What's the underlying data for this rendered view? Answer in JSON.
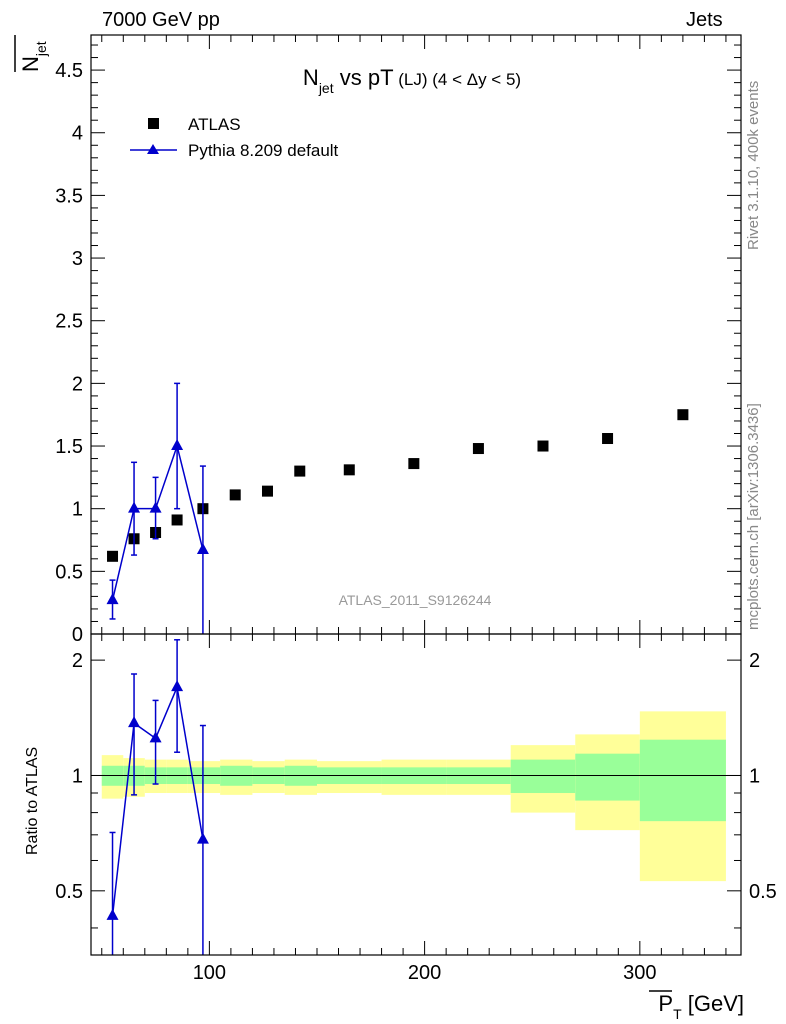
{
  "header": {
    "left": "7000 GeV pp",
    "right": "Jets"
  },
  "side_labels": {
    "rivet": "Rivet 3.1.10,  400k events",
    "source": "mcplots.cern.ch [arXiv:1306.3436]"
  },
  "chart_data": [
    {
      "type": "scatter",
      "title": "N_jet vs pT (LJ) (4 < Δy < 5)",
      "title_parts": {
        "n": "N",
        "sub": "jet",
        "mid": " vs pT",
        "small": " (LJ) (4 < Δy < 5)"
      },
      "ylabel_parts": {
        "n": "N",
        "sub": "jet"
      },
      "analysis_label": "ATLAS_2011_S9126244",
      "xlim": [
        45,
        347
      ],
      "ylim": [
        0,
        4.78
      ],
      "yticks": [
        0,
        0.5,
        1,
        1.5,
        2,
        2.5,
        3,
        3.5,
        4,
        4.5
      ],
      "ytick_labels": [
        "0",
        "0.5",
        "1",
        "1.5",
        "2",
        "2.5",
        "3",
        "3.5",
        "4",
        "4.5"
      ],
      "legend": {
        "placement": "top-left",
        "entries": [
          "ATLAS",
          "Pythia 8.209 default"
        ]
      },
      "series": [
        {
          "name": "ATLAS",
          "color": "#000000",
          "marker": "square",
          "x": [
            55,
            65,
            75,
            85,
            97,
            112,
            127,
            142,
            165,
            195,
            225,
            255,
            285,
            320
          ],
          "y": [
            0.62,
            0.76,
            0.81,
            0.91,
            1.0,
            1.11,
            1.14,
            1.3,
            1.31,
            1.36,
            1.48,
            1.5,
            1.56,
            1.75
          ]
        },
        {
          "name": "Pythia 8.209 default",
          "color": "#0000cc",
          "marker": "triangle",
          "x": [
            55,
            65,
            75,
            85,
            97
          ],
          "y": [
            0.27,
            1.0,
            1.0,
            1.5,
            0.67
          ],
          "yerr_low": [
            0.15,
            0.37,
            0.24,
            0.5,
            0.8
          ],
          "yerr_high": [
            0.16,
            0.37,
            0.25,
            0.5,
            0.67
          ]
        }
      ]
    },
    {
      "type": "scatter",
      "ylabel": "Ratio to ATLAS",
      "xlabel_parts": {
        "p": "P",
        "sub": "T",
        "unit": " [GeV]"
      },
      "xlim": [
        45,
        347
      ],
      "ylim": [
        0.34,
        2.34
      ],
      "xticks": [
        100,
        200,
        300
      ],
      "xtick_labels": [
        "100",
        "200",
        "300"
      ],
      "yticks": [
        0.5,
        1,
        2
      ],
      "ytick_labels": [
        "0.5",
        "1",
        "2"
      ],
      "reference_line": 1,
      "bands": {
        "colors": {
          "outer": "#ffff99",
          "inner": "#99ff99"
        },
        "bins": [
          {
            "lo": 50,
            "hi": 60,
            "y1": 0.87,
            "y2": 1.13,
            "g1": 0.94,
            "g2": 1.06
          },
          {
            "lo": 60,
            "hi": 70,
            "y1": 0.88,
            "y2": 1.11,
            "g1": 0.94,
            "g2": 1.06
          },
          {
            "lo": 70,
            "hi": 80,
            "y1": 0.9,
            "y2": 1.1,
            "g1": 0.95,
            "g2": 1.05
          },
          {
            "lo": 80,
            "hi": 90,
            "y1": 0.9,
            "y2": 1.1,
            "g1": 0.95,
            "g2": 1.05
          },
          {
            "lo": 90,
            "hi": 105,
            "y1": 0.9,
            "y2": 1.09,
            "g1": 0.95,
            "g2": 1.05
          },
          {
            "lo": 105,
            "hi": 120,
            "y1": 0.89,
            "y2": 1.1,
            "g1": 0.94,
            "g2": 1.06
          },
          {
            "lo": 120,
            "hi": 135,
            "y1": 0.9,
            "y2": 1.09,
            "g1": 0.95,
            "g2": 1.05
          },
          {
            "lo": 135,
            "hi": 150,
            "y1": 0.89,
            "y2": 1.1,
            "g1": 0.94,
            "g2": 1.06
          },
          {
            "lo": 150,
            "hi": 180,
            "y1": 0.9,
            "y2": 1.09,
            "g1": 0.95,
            "g2": 1.05
          },
          {
            "lo": 180,
            "hi": 210,
            "y1": 0.89,
            "y2": 1.1,
            "g1": 0.95,
            "g2": 1.05
          },
          {
            "lo": 210,
            "hi": 240,
            "y1": 0.89,
            "y2": 1.1,
            "g1": 0.95,
            "g2": 1.05
          },
          {
            "lo": 240,
            "hi": 270,
            "y1": 0.8,
            "y2": 1.2,
            "g1": 0.9,
            "g2": 1.1
          },
          {
            "lo": 270,
            "hi": 300,
            "y1": 0.72,
            "y2": 1.28,
            "g1": 0.86,
            "g2": 1.14
          },
          {
            "lo": 300,
            "hi": 340,
            "y1": 0.53,
            "y2": 1.47,
            "g1": 0.76,
            "g2": 1.24
          }
        ]
      },
      "series": [
        {
          "name": "Pythia 8.209 default",
          "color": "#0000cc",
          "marker": "triangle",
          "x": [
            55,
            65,
            75,
            85,
            97
          ],
          "y": [
            0.43,
            1.37,
            1.25,
            1.7,
            0.68
          ],
          "yerr_low": [
            0.3,
            0.48,
            0.3,
            0.55,
            0.9
          ],
          "yerr_high": [
            0.28,
            0.47,
            0.32,
            0.56,
            0.67
          ]
        }
      ]
    }
  ]
}
